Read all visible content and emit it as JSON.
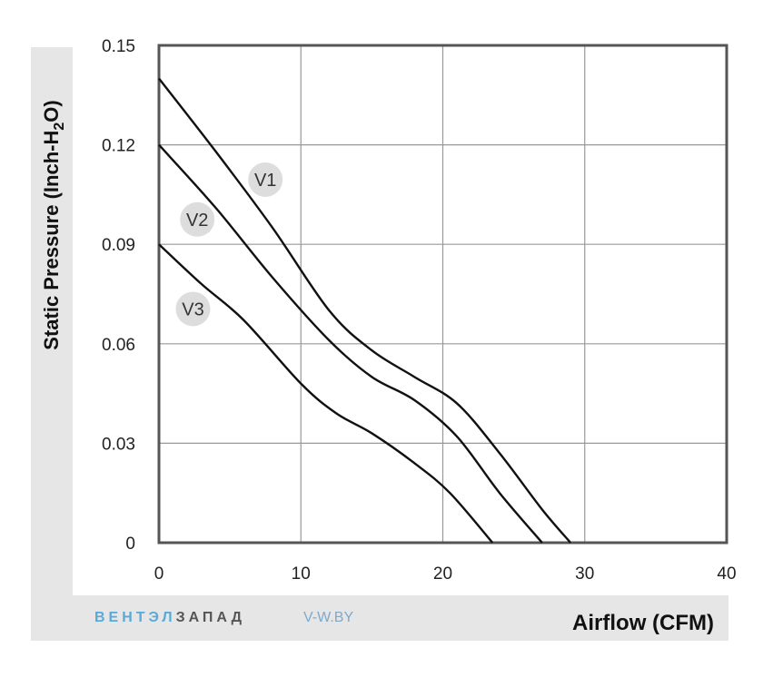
{
  "chart_data": {
    "type": "line",
    "xlabel": "Airflow (CFM)",
    "ylabel": "Static Pressure (Inch-H",
    "ylabel_sub": "2",
    "ylabel_end": "O)",
    "xlim": [
      0,
      40
    ],
    "ylim": [
      0,
      0.15
    ],
    "xticks": [
      "0",
      "10",
      "20",
      "30",
      "40"
    ],
    "yticks": [
      "0",
      "0.03",
      "0.06",
      "0.09",
      "0.12",
      "0.15"
    ],
    "grid": true,
    "series": [
      {
        "name": "V1",
        "x": [
          0,
          4,
          8,
          12,
          15,
          18,
          21,
          24,
          27,
          29
        ],
        "y": [
          0.14,
          0.118,
          0.095,
          0.07,
          0.058,
          0.05,
          0.042,
          0.027,
          0.01,
          0
        ]
      },
      {
        "name": "V2",
        "x": [
          0,
          4,
          8,
          12,
          15,
          18,
          21,
          24,
          27
        ],
        "y": [
          0.12,
          0.101,
          0.08,
          0.061,
          0.05,
          0.043,
          0.032,
          0.015,
          0
        ]
      },
      {
        "name": "V3",
        "x": [
          0,
          3,
          6,
          10,
          12.5,
          15,
          18,
          20.5,
          23.5
        ],
        "y": [
          0.09,
          0.078,
          0.067,
          0.048,
          0.039,
          0.033,
          0.024,
          0.015,
          0
        ]
      }
    ]
  },
  "branding": {
    "logo_part1": "ВЕНТЭЛ",
    "logo_part2": "ЗАПАД",
    "site": "V-W.BY"
  },
  "colors": {
    "frame": "#555555",
    "grid": "#999999",
    "curve": "#111111",
    "panel": "#e6e6e6",
    "label_badge": "#dddddd"
  }
}
